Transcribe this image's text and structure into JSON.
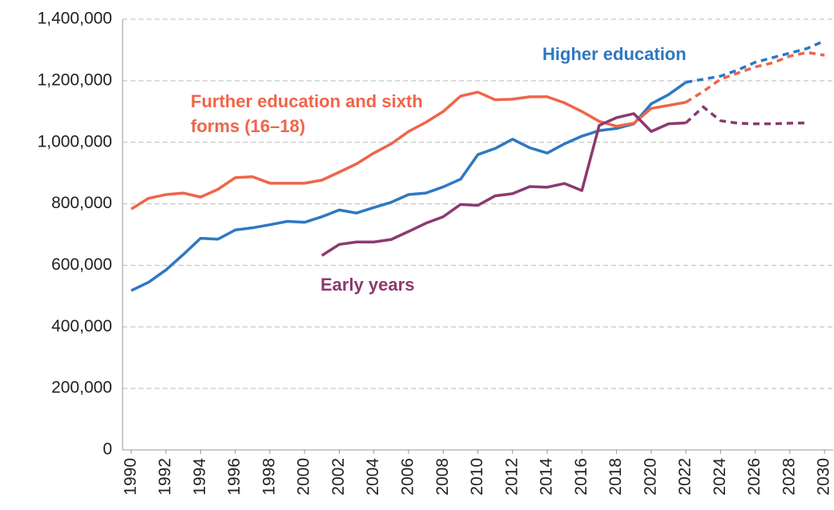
{
  "chart_data": {
    "type": "line",
    "x": [
      1990,
      1991,
      1992,
      1993,
      1994,
      1995,
      1996,
      1997,
      1998,
      1999,
      2000,
      2001,
      2002,
      2003,
      2004,
      2005,
      2006,
      2007,
      2008,
      2009,
      2010,
      2011,
      2012,
      2013,
      2014,
      2015,
      2016,
      2017,
      2018,
      2019,
      2020,
      2021,
      2022,
      2023,
      2024,
      2025,
      2026,
      2027,
      2028,
      2029,
      2030
    ],
    "series": [
      {
        "name": "Higher education",
        "color": "#2e78c2",
        "values": [
          518000,
          545000,
          585000,
          635000,
          688000,
          685000,
          715000,
          722000,
          732000,
          743000,
          740000,
          758000,
          780000,
          770000,
          788000,
          805000,
          830000,
          835000,
          855000,
          880000,
          960000,
          980000,
          1010000,
          982000,
          965000,
          995000,
          1020000,
          1038000,
          1045000,
          1060000,
          1125000,
          1155000,
          1195000,
          null,
          null,
          null,
          null,
          null,
          null,
          null,
          null
        ],
        "projection": [
          null,
          null,
          null,
          null,
          null,
          null,
          null,
          null,
          null,
          null,
          null,
          null,
          null,
          null,
          null,
          null,
          null,
          null,
          null,
          null,
          null,
          null,
          null,
          null,
          null,
          null,
          null,
          null,
          null,
          null,
          null,
          null,
          1195000,
          1205000,
          1215000,
          1235000,
          1260000,
          1275000,
          1290000,
          1305000,
          1330000
        ]
      },
      {
        "name": "Further education and sixth forms (16–18)",
        "color": "#ef6549",
        "values": [
          783000,
          818000,
          830000,
          835000,
          822000,
          847000,
          885000,
          888000,
          867000,
          867000,
          867000,
          877000,
          903000,
          930000,
          965000,
          995000,
          1035000,
          1065000,
          1100000,
          1150000,
          1163000,
          1138000,
          1140000,
          1148000,
          1148000,
          1128000,
          1100000,
          1068000,
          1052000,
          1062000,
          1110000,
          1120000,
          1130000,
          null,
          null,
          null,
          null,
          null,
          null,
          null,
          null
        ],
        "projection": [
          null,
          null,
          null,
          null,
          null,
          null,
          null,
          null,
          null,
          null,
          null,
          null,
          null,
          null,
          null,
          null,
          null,
          null,
          null,
          null,
          null,
          null,
          null,
          null,
          null,
          null,
          null,
          null,
          null,
          null,
          null,
          null,
          1130000,
          1165000,
          1205000,
          1225000,
          1245000,
          1258000,
          1280000,
          1292000,
          1283000
        ]
      },
      {
        "name": "Early years",
        "color": "#8b3a6f",
        "values": [
          null,
          null,
          null,
          null,
          null,
          null,
          null,
          null,
          null,
          null,
          null,
          632000,
          668000,
          676000,
          676000,
          684000,
          710000,
          737000,
          758000,
          798000,
          795000,
          826000,
          833000,
          856000,
          854000,
          866000,
          843000,
          1055000,
          1080000,
          1093000,
          1035000,
          1060000,
          1063000,
          null,
          null,
          null,
          null,
          null,
          null,
          null,
          null
        ],
        "projection": [
          null,
          null,
          null,
          null,
          null,
          null,
          null,
          null,
          null,
          null,
          null,
          null,
          null,
          null,
          null,
          null,
          null,
          null,
          null,
          null,
          null,
          null,
          null,
          null,
          null,
          null,
          null,
          null,
          null,
          null,
          null,
          null,
          1063000,
          1115000,
          1070000,
          1062000,
          1060000,
          1060000,
          1062000,
          1063000,
          null
        ]
      }
    ],
    "xlim": [
      1989.5,
      2030.5
    ],
    "xticks": [
      1990,
      1992,
      1994,
      1996,
      1998,
      2000,
      2002,
      2004,
      2006,
      2008,
      2010,
      2012,
      2014,
      2016,
      2018,
      2020,
      2022,
      2024,
      2026,
      2028,
      2030
    ],
    "ylim": [
      0,
      1400000
    ],
    "yticks": [
      0,
      {
        "value": 200000,
        "label": "200,000"
      },
      {
        "value": 400000,
        "label": "400,000"
      },
      {
        "value": 600000,
        "label": "600,000"
      },
      {
        "value": 800000,
        "label": "800,000"
      },
      {
        "value": 1000000,
        "label": "1,000,000"
      },
      {
        "value": 1200000,
        "label": "1,200,000"
      },
      {
        "value": 1400000,
        "label": "1,400,000"
      }
    ],
    "grid": true
  }
}
